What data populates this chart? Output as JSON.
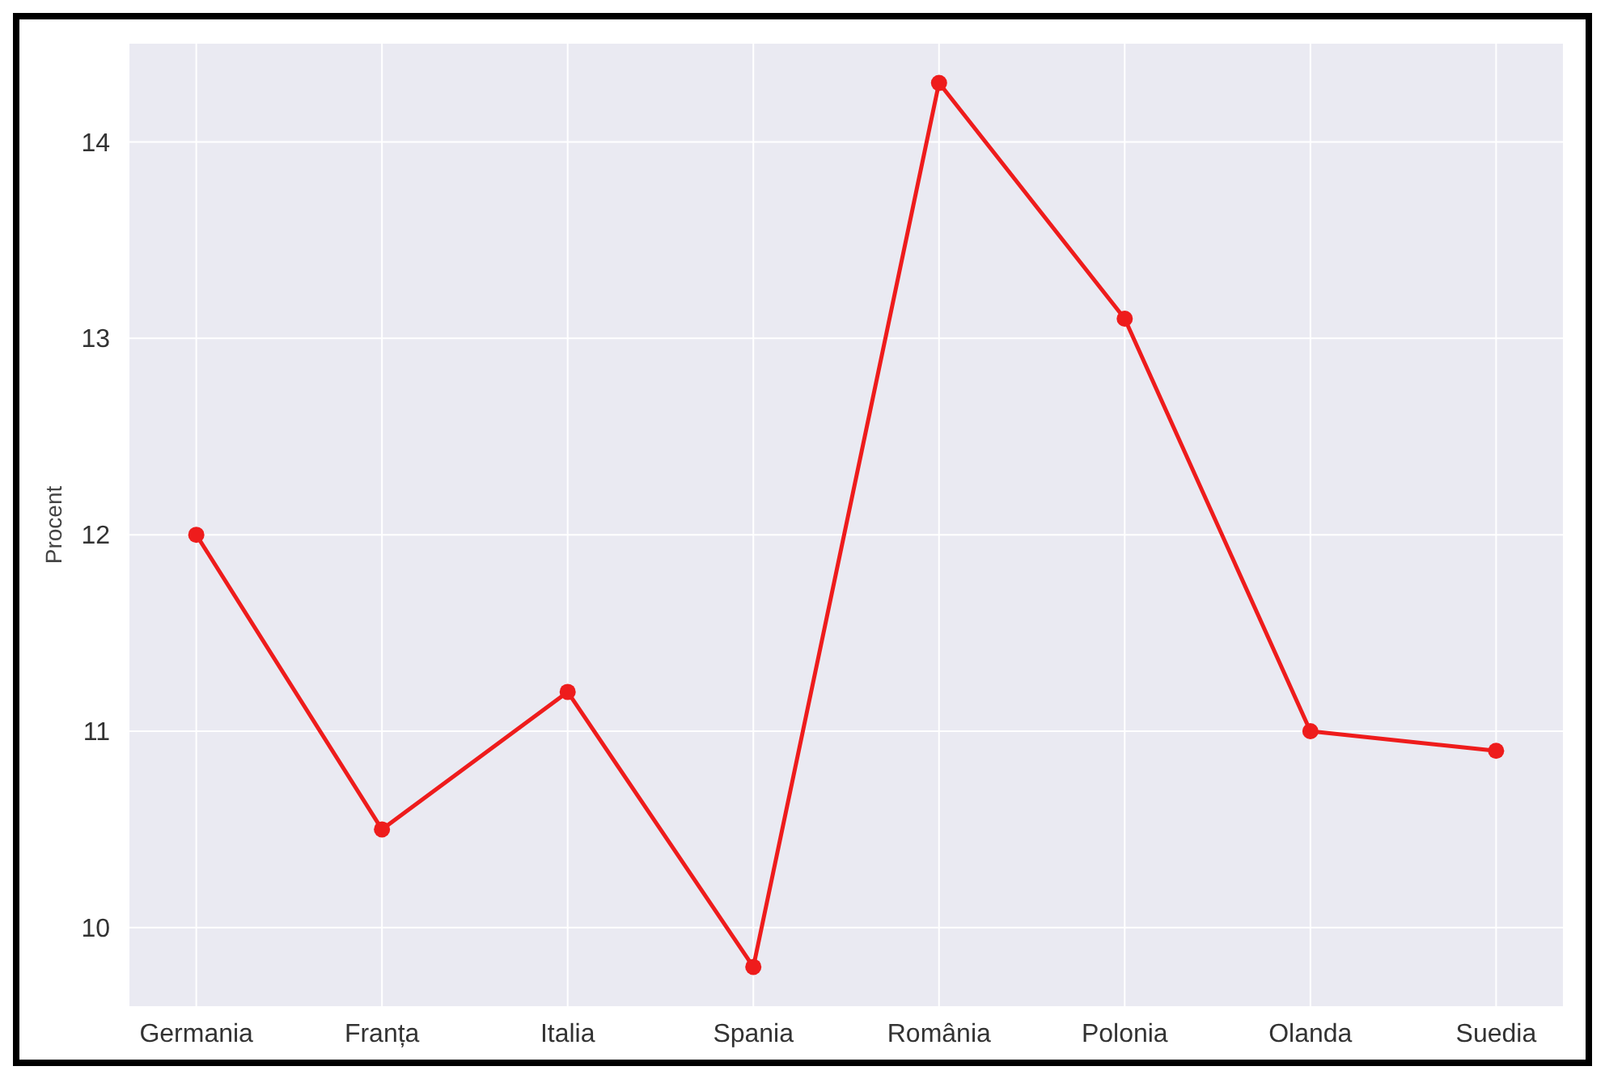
{
  "chart_data": {
    "type": "line",
    "ylabel": "Procent",
    "categories": [
      "Germania",
      "Franța",
      "Italia",
      "Spania",
      "România",
      "Polonia",
      "Olanda",
      "Suedia"
    ],
    "series": [
      {
        "color": "#ee1c1c",
        "values": [
          12.0,
          10.5,
          11.2,
          9.8,
          14.3,
          13.1,
          11.0,
          10.9
        ]
      }
    ],
    "ylim": [
      9.6,
      14.5
    ],
    "yticks": [
      10,
      11,
      12,
      13,
      14
    ],
    "grid": true,
    "marker": "circle",
    "line_style": "solid"
  }
}
